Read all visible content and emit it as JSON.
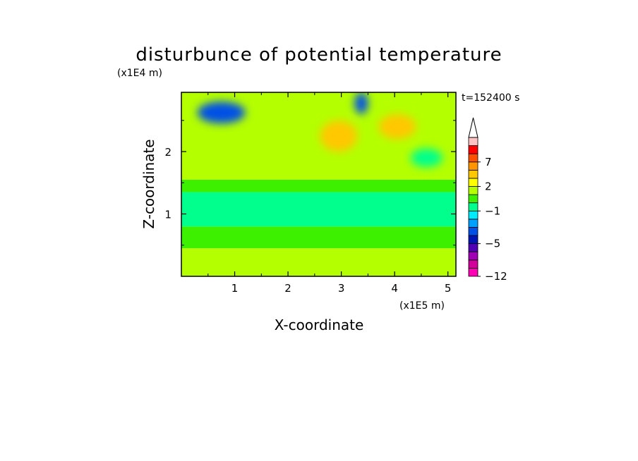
{
  "chart_data": {
    "type": "heatmap",
    "title": "disturbunce of potential temperature",
    "xlabel": "X-coordinate",
    "ylabel": "Z-coordinate",
    "x_scale_label": "(x1E5 m)",
    "y_scale_label": "(x1E4 m)",
    "time_label": "t=152400 s",
    "xlim": [
      0,
      5.15
    ],
    "ylim": [
      0,
      2.95
    ],
    "x_ticks": [
      "1",
      "2",
      "3",
      "4",
      "5"
    ],
    "x_tick_values": [
      1,
      2,
      3,
      4,
      5
    ],
    "y_ticks": [
      "1",
      "2"
    ],
    "y_tick_values": [
      1,
      2
    ],
    "colorbar": {
      "labels": [
        "7",
        "2",
        "−1",
        "−5",
        "−12"
      ],
      "label_values": [
        7,
        2,
        -1,
        -5,
        -12
      ],
      "levels": [
        -12,
        -10,
        -8,
        -6,
        -5,
        -4,
        -3,
        -2,
        -1,
        0,
        1,
        2,
        3,
        5,
        7,
        9,
        11,
        13
      ],
      "colors": [
        "#ff00b4",
        "#d2009a",
        "#a000b4",
        "#5000b4",
        "#0014b4",
        "#0050e6",
        "#00a0ff",
        "#00ebff",
        "#00ff8c",
        "#3cf000",
        "#b4ff00",
        "#ffff00",
        "#ffc800",
        "#ff9600",
        "#ff5000",
        "#ff0000",
        "#ffc3c3"
      ],
      "extend": "max"
    },
    "regions": [
      {
        "x": [
          0.0,
          5.15
        ],
        "z": [
          0.0,
          0.45
        ],
        "value": 1.5
      },
      {
        "x": [
          0.0,
          5.15
        ],
        "z": [
          0.45,
          0.8
        ],
        "value": 0.5
      },
      {
        "x": [
          0.0,
          5.15
        ],
        "z": [
          0.8,
          1.35
        ],
        "value": -0.5
      },
      {
        "x": [
          0.0,
          5.15
        ],
        "z": [
          1.35,
          1.55
        ],
        "value": 0.5
      },
      {
        "x": [
          0.0,
          5.15
        ],
        "z": [
          1.55,
          2.95
        ],
        "value": 1.5
      },
      {
        "x": [
          0.3,
          1.2
        ],
        "z": [
          2.45,
          2.8
        ],
        "value": -3.5
      },
      {
        "x": [
          3.25,
          3.5
        ],
        "z": [
          2.6,
          2.95
        ],
        "value": -3.5
      },
      {
        "x": [
          2.6,
          3.3
        ],
        "z": [
          2.0,
          2.5
        ],
        "value": 4
      },
      {
        "x": [
          3.7,
          4.4
        ],
        "z": [
          2.2,
          2.6
        ],
        "value": 4
      },
      {
        "x": [
          4.3,
          4.9
        ],
        "z": [
          1.75,
          2.05
        ],
        "value": -0.5
      }
    ]
  }
}
